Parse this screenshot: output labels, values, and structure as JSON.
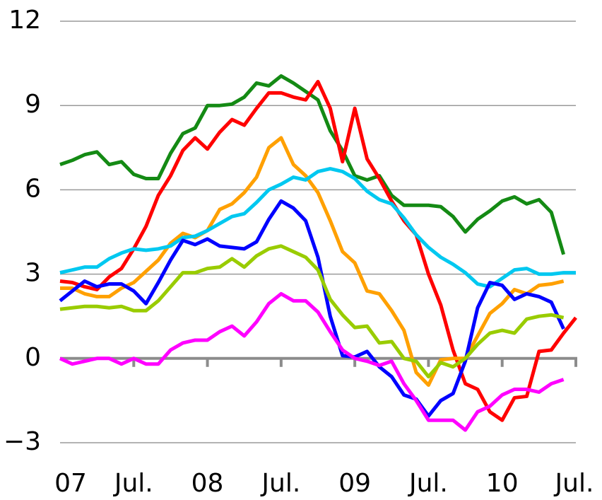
{
  "chart_data": {
    "type": "line",
    "categories": [
      "07",
      null,
      null,
      null,
      null,
      null,
      "Jul.",
      null,
      null,
      null,
      null,
      null,
      "08",
      null,
      null,
      null,
      null,
      null,
      "Jul.",
      null,
      null,
      null,
      null,
      null,
      "09",
      null,
      null,
      null,
      null,
      null,
      "Jul.",
      null,
      null,
      null,
      null,
      null,
      "10",
      null,
      null,
      null,
      null,
      null,
      "Jul."
    ],
    "ylim": [
      -3,
      12
    ],
    "yticks": [
      {
        "value": -3,
        "label": "−3"
      },
      0,
      3,
      6,
      9,
      12
    ],
    "grid": true,
    "series": [
      {
        "color": "#148a14",
        "values": [
          6.9,
          7.05,
          7.25,
          7.35,
          6.9,
          7.0,
          6.55,
          6.4,
          6.4,
          7.3,
          8.0,
          8.2,
          9.0,
          9.0,
          9.05,
          9.3,
          9.8,
          9.7,
          10.05,
          9.8,
          9.5,
          9.2,
          8.1,
          7.4,
          6.5,
          6.35,
          6.5,
          5.8,
          5.45,
          5.45,
          5.45,
          5.4,
          5.05,
          4.5,
          4.95,
          5.25,
          5.6,
          5.75,
          5.5,
          5.65,
          5.2,
          3.7,
          null
        ]
      },
      {
        "color": "#ff0000",
        "values": [
          2.75,
          2.7,
          2.55,
          2.45,
          2.9,
          3.2,
          3.9,
          4.7,
          5.8,
          6.5,
          7.4,
          7.85,
          7.45,
          8.05,
          8.5,
          8.3,
          8.9,
          9.45,
          9.45,
          9.3,
          9.2,
          9.85,
          8.9,
          7.0,
          8.9,
          7.1,
          6.4,
          5.6,
          4.9,
          4.4,
          3.0,
          1.9,
          0.3,
          -0.9,
          -1.1,
          -1.9,
          -2.2,
          -1.4,
          -1.35,
          0.25,
          0.3,
          0.9,
          1.45
        ]
      },
      {
        "color": "#ffa000",
        "values": [
          2.5,
          2.5,
          2.3,
          2.2,
          2.2,
          2.5,
          2.7,
          3.1,
          3.5,
          4.1,
          4.45,
          4.3,
          4.55,
          5.3,
          5.5,
          5.9,
          6.45,
          7.5,
          7.85,
          6.9,
          6.5,
          5.9,
          4.9,
          3.8,
          3.4,
          2.4,
          2.3,
          1.7,
          1.0,
          -0.5,
          -0.95,
          -0.05,
          0.0,
          0.0,
          0.8,
          1.6,
          1.95,
          2.45,
          2.3,
          2.6,
          2.65,
          2.75,
          null
        ]
      },
      {
        "color": "#00c8f0",
        "values": [
          3.05,
          3.15,
          3.25,
          3.25,
          3.55,
          3.75,
          3.9,
          3.85,
          3.9,
          4.0,
          4.3,
          4.35,
          4.55,
          4.8,
          5.05,
          5.15,
          5.55,
          6.0,
          6.2,
          6.45,
          6.35,
          6.65,
          6.75,
          6.65,
          6.4,
          5.95,
          5.65,
          5.5,
          5.0,
          4.4,
          3.95,
          3.6,
          3.35,
          3.05,
          2.65,
          2.55,
          2.85,
          3.15,
          3.2,
          3.0,
          3.0,
          3.05,
          3.05
        ]
      },
      {
        "color": "#0000ff",
        "values": [
          2.05,
          2.4,
          2.75,
          2.55,
          2.65,
          2.65,
          2.4,
          1.95,
          2.7,
          3.5,
          4.2,
          4.05,
          4.25,
          4.0,
          3.95,
          3.9,
          4.15,
          4.95,
          5.6,
          5.35,
          4.9,
          3.6,
          1.5,
          0.1,
          0.05,
          0.25,
          -0.3,
          -0.65,
          -1.3,
          -1.45,
          -2.05,
          -1.5,
          -1.25,
          -0.1,
          1.8,
          2.7,
          2.6,
          2.1,
          2.3,
          2.2,
          2.0,
          1.05,
          null
        ]
      },
      {
        "color": "#99cc00",
        "values": [
          1.75,
          1.8,
          1.85,
          1.85,
          1.8,
          1.85,
          1.7,
          1.7,
          2.05,
          2.55,
          3.05,
          3.05,
          3.2,
          3.25,
          3.55,
          3.25,
          3.65,
          3.9,
          4.0,
          3.8,
          3.6,
          3.15,
          2.1,
          1.55,
          1.1,
          1.15,
          0.55,
          0.6,
          0.0,
          -0.1,
          -0.65,
          -0.15,
          -0.3,
          0.0,
          0.5,
          0.9,
          1.0,
          0.9,
          1.4,
          1.5,
          1.55,
          1.45,
          null
        ]
      },
      {
        "color": "#ff00ff",
        "values": [
          0.0,
          -0.2,
          -0.1,
          0.0,
          0.0,
          -0.2,
          0.0,
          -0.2,
          -0.2,
          0.3,
          0.55,
          0.65,
          0.65,
          0.95,
          1.15,
          0.8,
          1.3,
          1.95,
          2.3,
          2.05,
          2.05,
          1.65,
          0.95,
          0.3,
          0.0,
          -0.1,
          -0.25,
          -0.1,
          -0.9,
          -1.5,
          -2.2,
          -2.2,
          -2.2,
          -2.55,
          -1.9,
          -1.7,
          -1.3,
          -1.1,
          -1.1,
          -1.2,
          -0.9,
          -0.75,
          null
        ]
      }
    ]
  }
}
